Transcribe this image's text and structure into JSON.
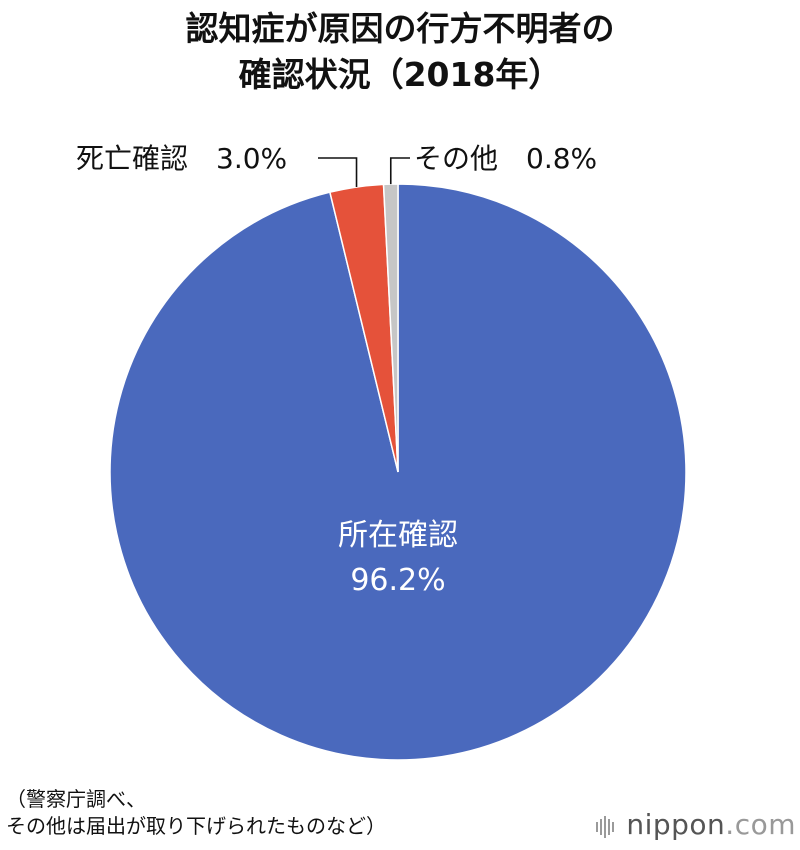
{
  "title": {
    "line1": "認知症が原因の行方不明者の",
    "line2": "確認状況（2018年）"
  },
  "colors": {
    "slice_0": "#4a69bd",
    "slice_1": "#e5523a",
    "slice_2": "#c6c6c6",
    "leader": "#111111",
    "inner_label": "#ffffff",
    "outer_label": "#111111"
  },
  "chart_data": {
    "type": "pie",
    "title": "認知症が原因の行方不明者の確認状況（2018年）",
    "slices": [
      {
        "label": "所在確認",
        "value": 96.2,
        "value_label": "96.2%"
      },
      {
        "label": "死亡確認",
        "value": 3.0,
        "value_label": "3.0%"
      },
      {
        "label": "その他",
        "value": 0.8,
        "value_label": "0.8%"
      }
    ],
    "start": "12 o'clock",
    "direction": "clockwise",
    "legend": "none"
  },
  "labels": {
    "outer_left": "死亡確認　3.0%",
    "outer_right": "その他　0.8%"
  },
  "footnote": {
    "line1": "（警察庁調べ、",
    "line2": "その他は届出が取り下げられたものなど）"
  },
  "logo": {
    "brand": "nippon",
    "suffix": ".com"
  }
}
